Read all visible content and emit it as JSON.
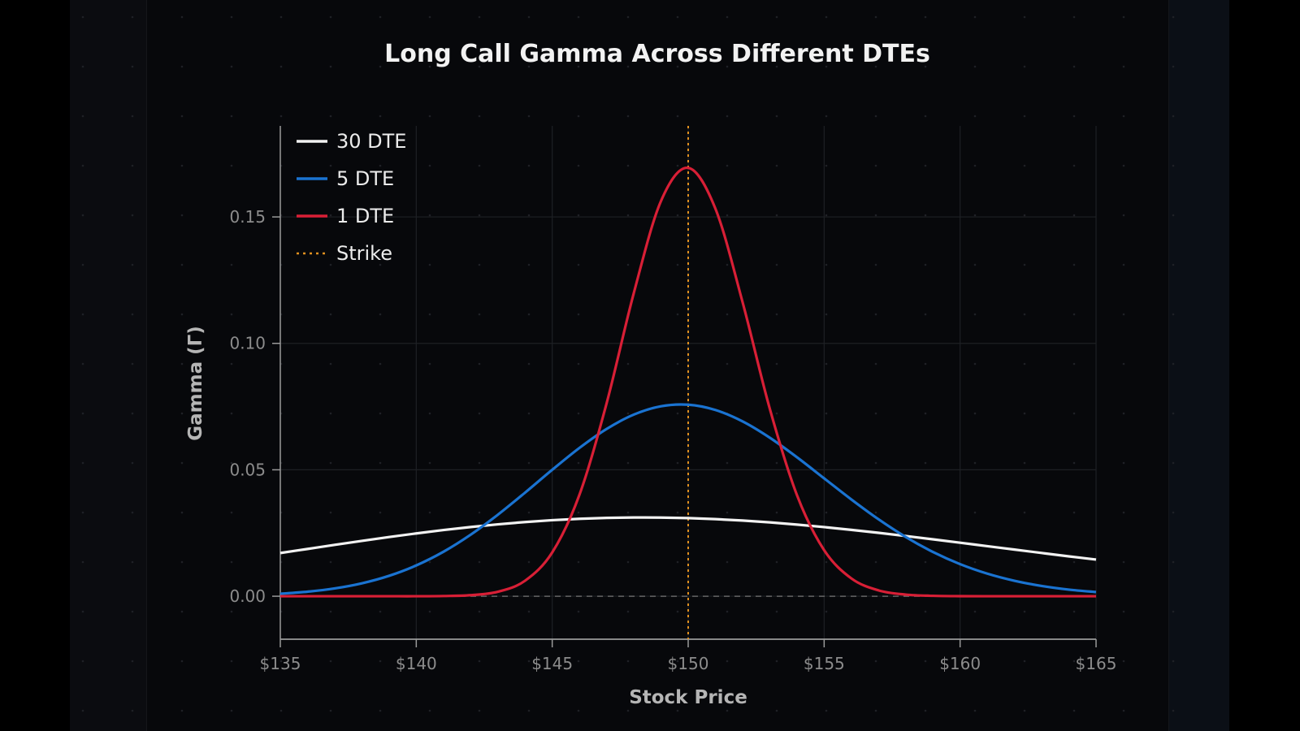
{
  "chart_data": {
    "type": "line",
    "title": "Long Call Gamma Across Different DTEs",
    "xlabel": "Stock Price",
    "ylabel": "Gamma (Γ)",
    "xlim": [
      135,
      165
    ],
    "ylim": [
      -0.017,
      0.186
    ],
    "x_ticks": [
      "$135",
      "$140",
      "$145",
      "$150",
      "$155",
      "$160",
      "$165"
    ],
    "x_tick_values": [
      135,
      140,
      145,
      150,
      155,
      160,
      165
    ],
    "y_ticks": [
      "0.00",
      "0.05",
      "0.10",
      "0.15"
    ],
    "y_tick_values": [
      0,
      0.05,
      0.1,
      0.15
    ],
    "grid": true,
    "legend_position": "top-left",
    "x": [
      135,
      136,
      137,
      138,
      139,
      140,
      141,
      142,
      143,
      144,
      145,
      146,
      147,
      148,
      149,
      150,
      151,
      152,
      153,
      154,
      155,
      156,
      157,
      158,
      159,
      160,
      161,
      162,
      163,
      164,
      165
    ],
    "series": [
      {
        "name": "30 DTE",
        "color": "#f2f2f2",
        "style": "solid",
        "values": [
          0.01709,
          0.0187,
          0.02031,
          0.02188,
          0.0234,
          0.02484,
          0.02617,
          0.02737,
          0.02844,
          0.02934,
          0.03007,
          0.03062,
          0.03098,
          0.03114,
          0.03111,
          0.03089,
          0.03049,
          0.02993,
          0.02921,
          0.02834,
          0.02735,
          0.02625,
          0.02507,
          0.02381,
          0.0225,
          0.02116,
          0.0198,
          0.01845,
          0.0171,
          0.01577,
          0.01449
        ]
      },
      {
        "name": "5 DTE",
        "color": "#1a73d1",
        "style": "solid",
        "values": [
          0.00099,
          0.00179,
          0.0031,
          0.00512,
          0.00808,
          0.01219,
          0.01759,
          0.02433,
          0.03223,
          0.04096,
          0.05,
          0.05865,
          0.06616,
          0.07183,
          0.07512,
          0.07574,
          0.07365,
          0.06914,
          0.0627,
          0.05497,
          0.04662,
          0.03827,
          0.03042,
          0.02343,
          0.01751,
          0.01269,
          0.00893,
          0.00611,
          0.00406,
          0.00262,
          0.00165
        ]
      },
      {
        "name": "1 DTE",
        "color": "#d81f36",
        "style": "solid",
        "values": [
          0,
          0,
          0,
          0,
          0,
          0,
          8e-05,
          0.00042,
          0.00177,
          0.00613,
          0.01733,
          0.0401,
          0.0763,
          0.1199,
          0.1563,
          0.1694,
          0.1533,
          0.1163,
          0.0742,
          0.04,
          0.01821,
          0.00705,
          0.00232,
          0.00065,
          0.00016,
          3e-05,
          0,
          0,
          0,
          0,
          0
        ]
      }
    ],
    "reference_lines": [
      {
        "name": "Strike",
        "x": 150,
        "color": "#e0901f",
        "style": "dotted"
      }
    ],
    "zero_line": {
      "y": 0,
      "style": "dashed",
      "color": "#666666"
    }
  }
}
